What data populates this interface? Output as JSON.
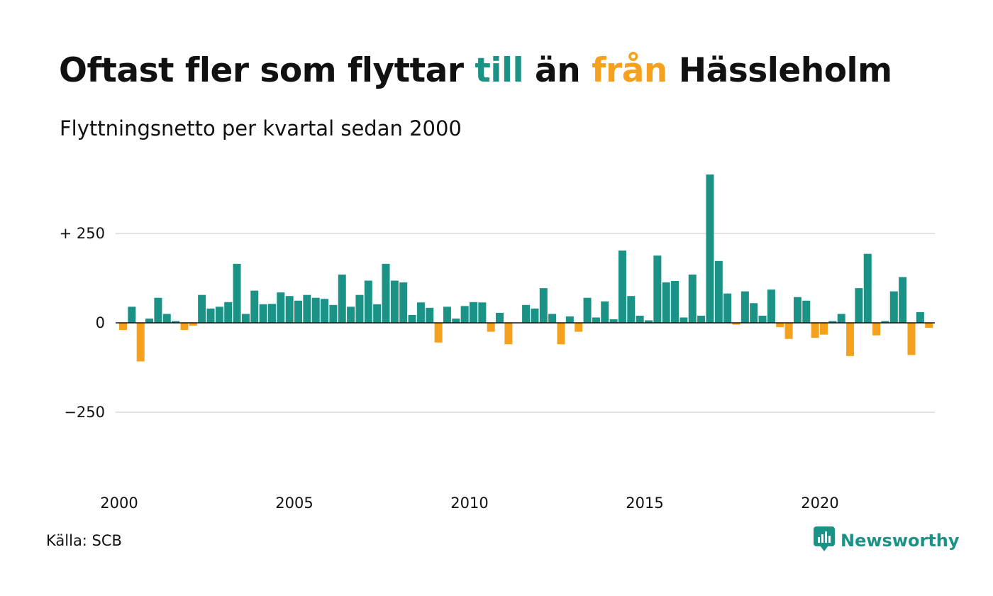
{
  "header": {
    "title_part1": "Oftast fler som flyttar ",
    "title_till": "till",
    "title_part2": " än ",
    "title_fran": "från",
    "title_part3": " Hässleholm",
    "subtitle": "Flyttningsnetto per kvartal sedan 2000"
  },
  "footer": {
    "source": "Källa: SCB",
    "logo_text": "Newsworthy",
    "logo_icon": "newsworthy-logo-icon"
  },
  "colors": {
    "positive": "#1a9286",
    "negative": "#f5a11d",
    "grid": "#e2e2e2",
    "axis": "#111111",
    "text": "#111111"
  },
  "chart_data": {
    "type": "bar",
    "title": "Oftast fler som flyttar till än från Hässleholm",
    "subtitle": "Flyttningsnetto per kvartal sedan 2000",
    "xlabel": "",
    "ylabel": "",
    "ylim": [
      -450,
      420
    ],
    "yticks": [
      {
        "value": 250,
        "label": "+ 250"
      },
      {
        "value": 0,
        "label": "0"
      },
      {
        "value": -250,
        "label": "−250"
      }
    ],
    "xticks": [
      {
        "year": 2000,
        "label": "2000"
      },
      {
        "year": 2005,
        "label": "2005"
      },
      {
        "year": 2010,
        "label": "2010"
      },
      {
        "year": 2015,
        "label": "2015"
      },
      {
        "year": 2020,
        "label": "2020"
      }
    ],
    "start_year": 2000,
    "grid": true,
    "legend": "none",
    "values": [
      -20,
      45,
      -108,
      12,
      70,
      25,
      5,
      -20,
      -8,
      78,
      40,
      45,
      58,
      165,
      25,
      90,
      52,
      53,
      85,
      75,
      62,
      78,
      70,
      67,
      50,
      135,
      45,
      78,
      118,
      52,
      165,
      118,
      113,
      22,
      57,
      42,
      -55,
      45,
      12,
      47,
      58,
      57,
      -25,
      28,
      -60,
      0,
      50,
      40,
      97,
      25,
      -60,
      18,
      -25,
      70,
      15,
      60,
      10,
      202,
      75,
      20,
      7,
      188,
      113,
      117,
      15,
      135,
      20,
      415,
      173,
      82,
      -5,
      88,
      55,
      20,
      93,
      -12,
      -45,
      72,
      62,
      -42,
      -33,
      5,
      25,
      -93,
      97,
      193,
      -35,
      5,
      88,
      128,
      -90,
      30,
      -14
    ]
  }
}
